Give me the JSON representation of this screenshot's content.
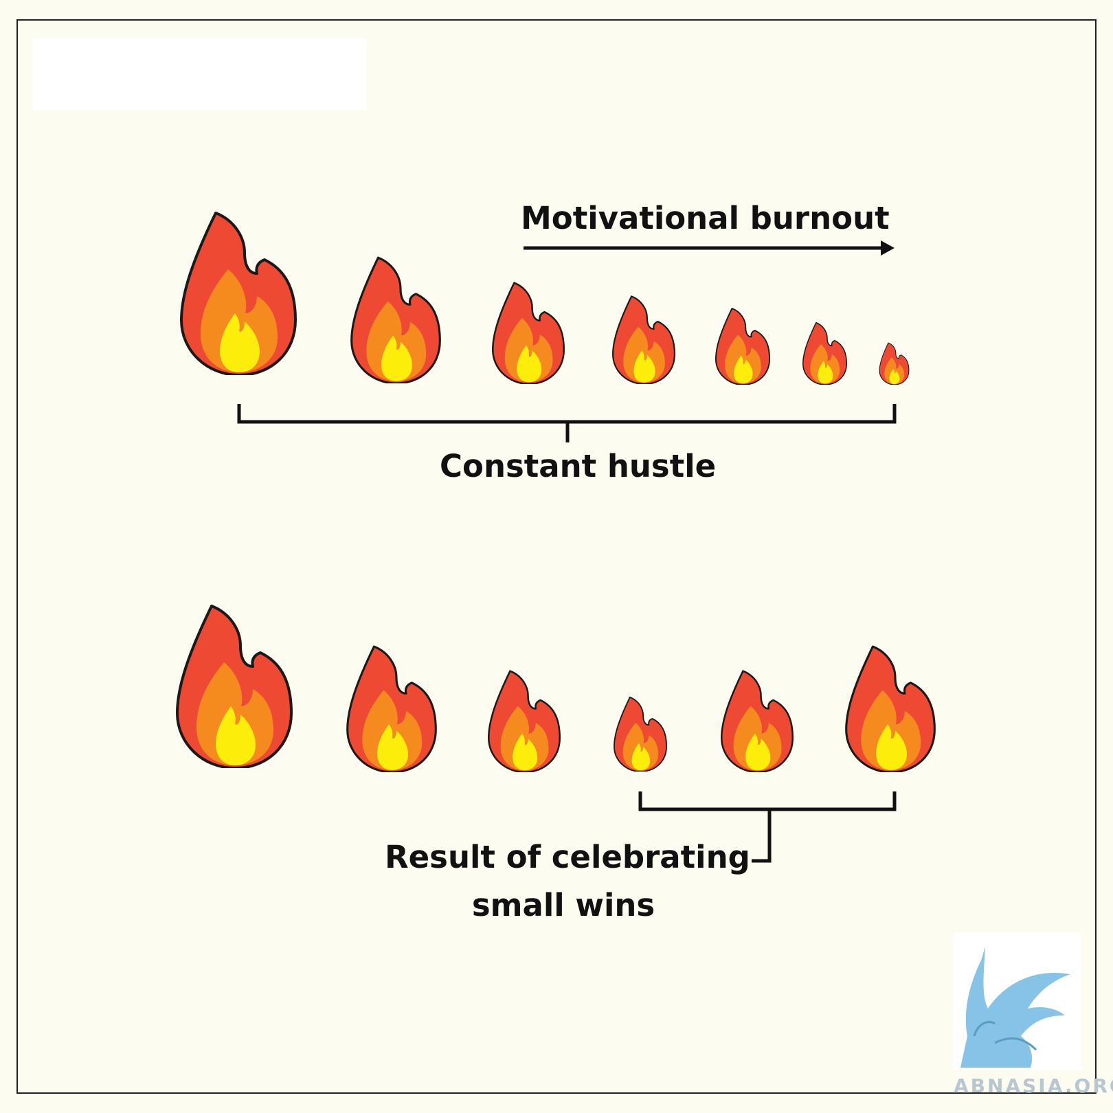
{
  "labels": {
    "burnout": "Motivational burnout",
    "hustle": "Constant hustle",
    "wins_line1": "Result of celebrating",
    "wins_line2": "small wins"
  },
  "watermark": {
    "text": "ABNASIA.ORG"
  },
  "icons": {
    "flame": "fire-icon",
    "logo": "griffin-logo-icon",
    "arrow": "right-arrow-icon"
  },
  "colors": {
    "background": "#fdfcf0",
    "flame_outer": "#ee4a33",
    "flame_middle": "#f58a1f",
    "flame_inner": "#fcee0a",
    "outline": "#1a1a1a",
    "logo": "#86c3e6"
  },
  "rows": {
    "burnout_row": {
      "flame_count": 7,
      "relative_sizes": [
        1.0,
        0.78,
        0.62,
        0.54,
        0.47,
        0.38,
        0.26
      ]
    },
    "wins_row": {
      "flame_count": 6,
      "relative_sizes": [
        1.0,
        0.78,
        0.62,
        0.46,
        0.62,
        0.78
      ]
    }
  }
}
